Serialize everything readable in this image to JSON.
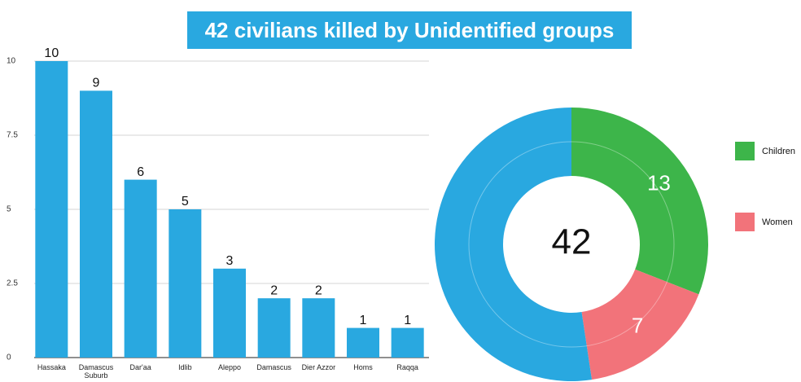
{
  "title": "42 civilians killed by Unidentified groups",
  "chart_data": [
    {
      "type": "bar",
      "categories": [
        "Hassaka",
        "Damascus Suburb",
        "Dar'aa",
        "Idlib",
        "Aleppo",
        "Damascus",
        "Dier Azzor",
        "Homs",
        "Raqqa"
      ],
      "values": [
        10,
        9,
        6,
        5,
        3,
        2,
        2,
        1,
        1
      ],
      "color": "#29a8e0",
      "ylim": [
        0,
        10
      ],
      "yticks": [
        0,
        2.5,
        5,
        7.5,
        10
      ],
      "grid": true
    },
    {
      "type": "pie",
      "categories": [
        "Children",
        "Women",
        null
      ],
      "values": [
        13,
        7,
        22
      ],
      "colors": [
        "#3db54a",
        "#f2737a",
        "#29a8e0"
      ],
      "center_label": 42,
      "legend": "right"
    }
  ]
}
